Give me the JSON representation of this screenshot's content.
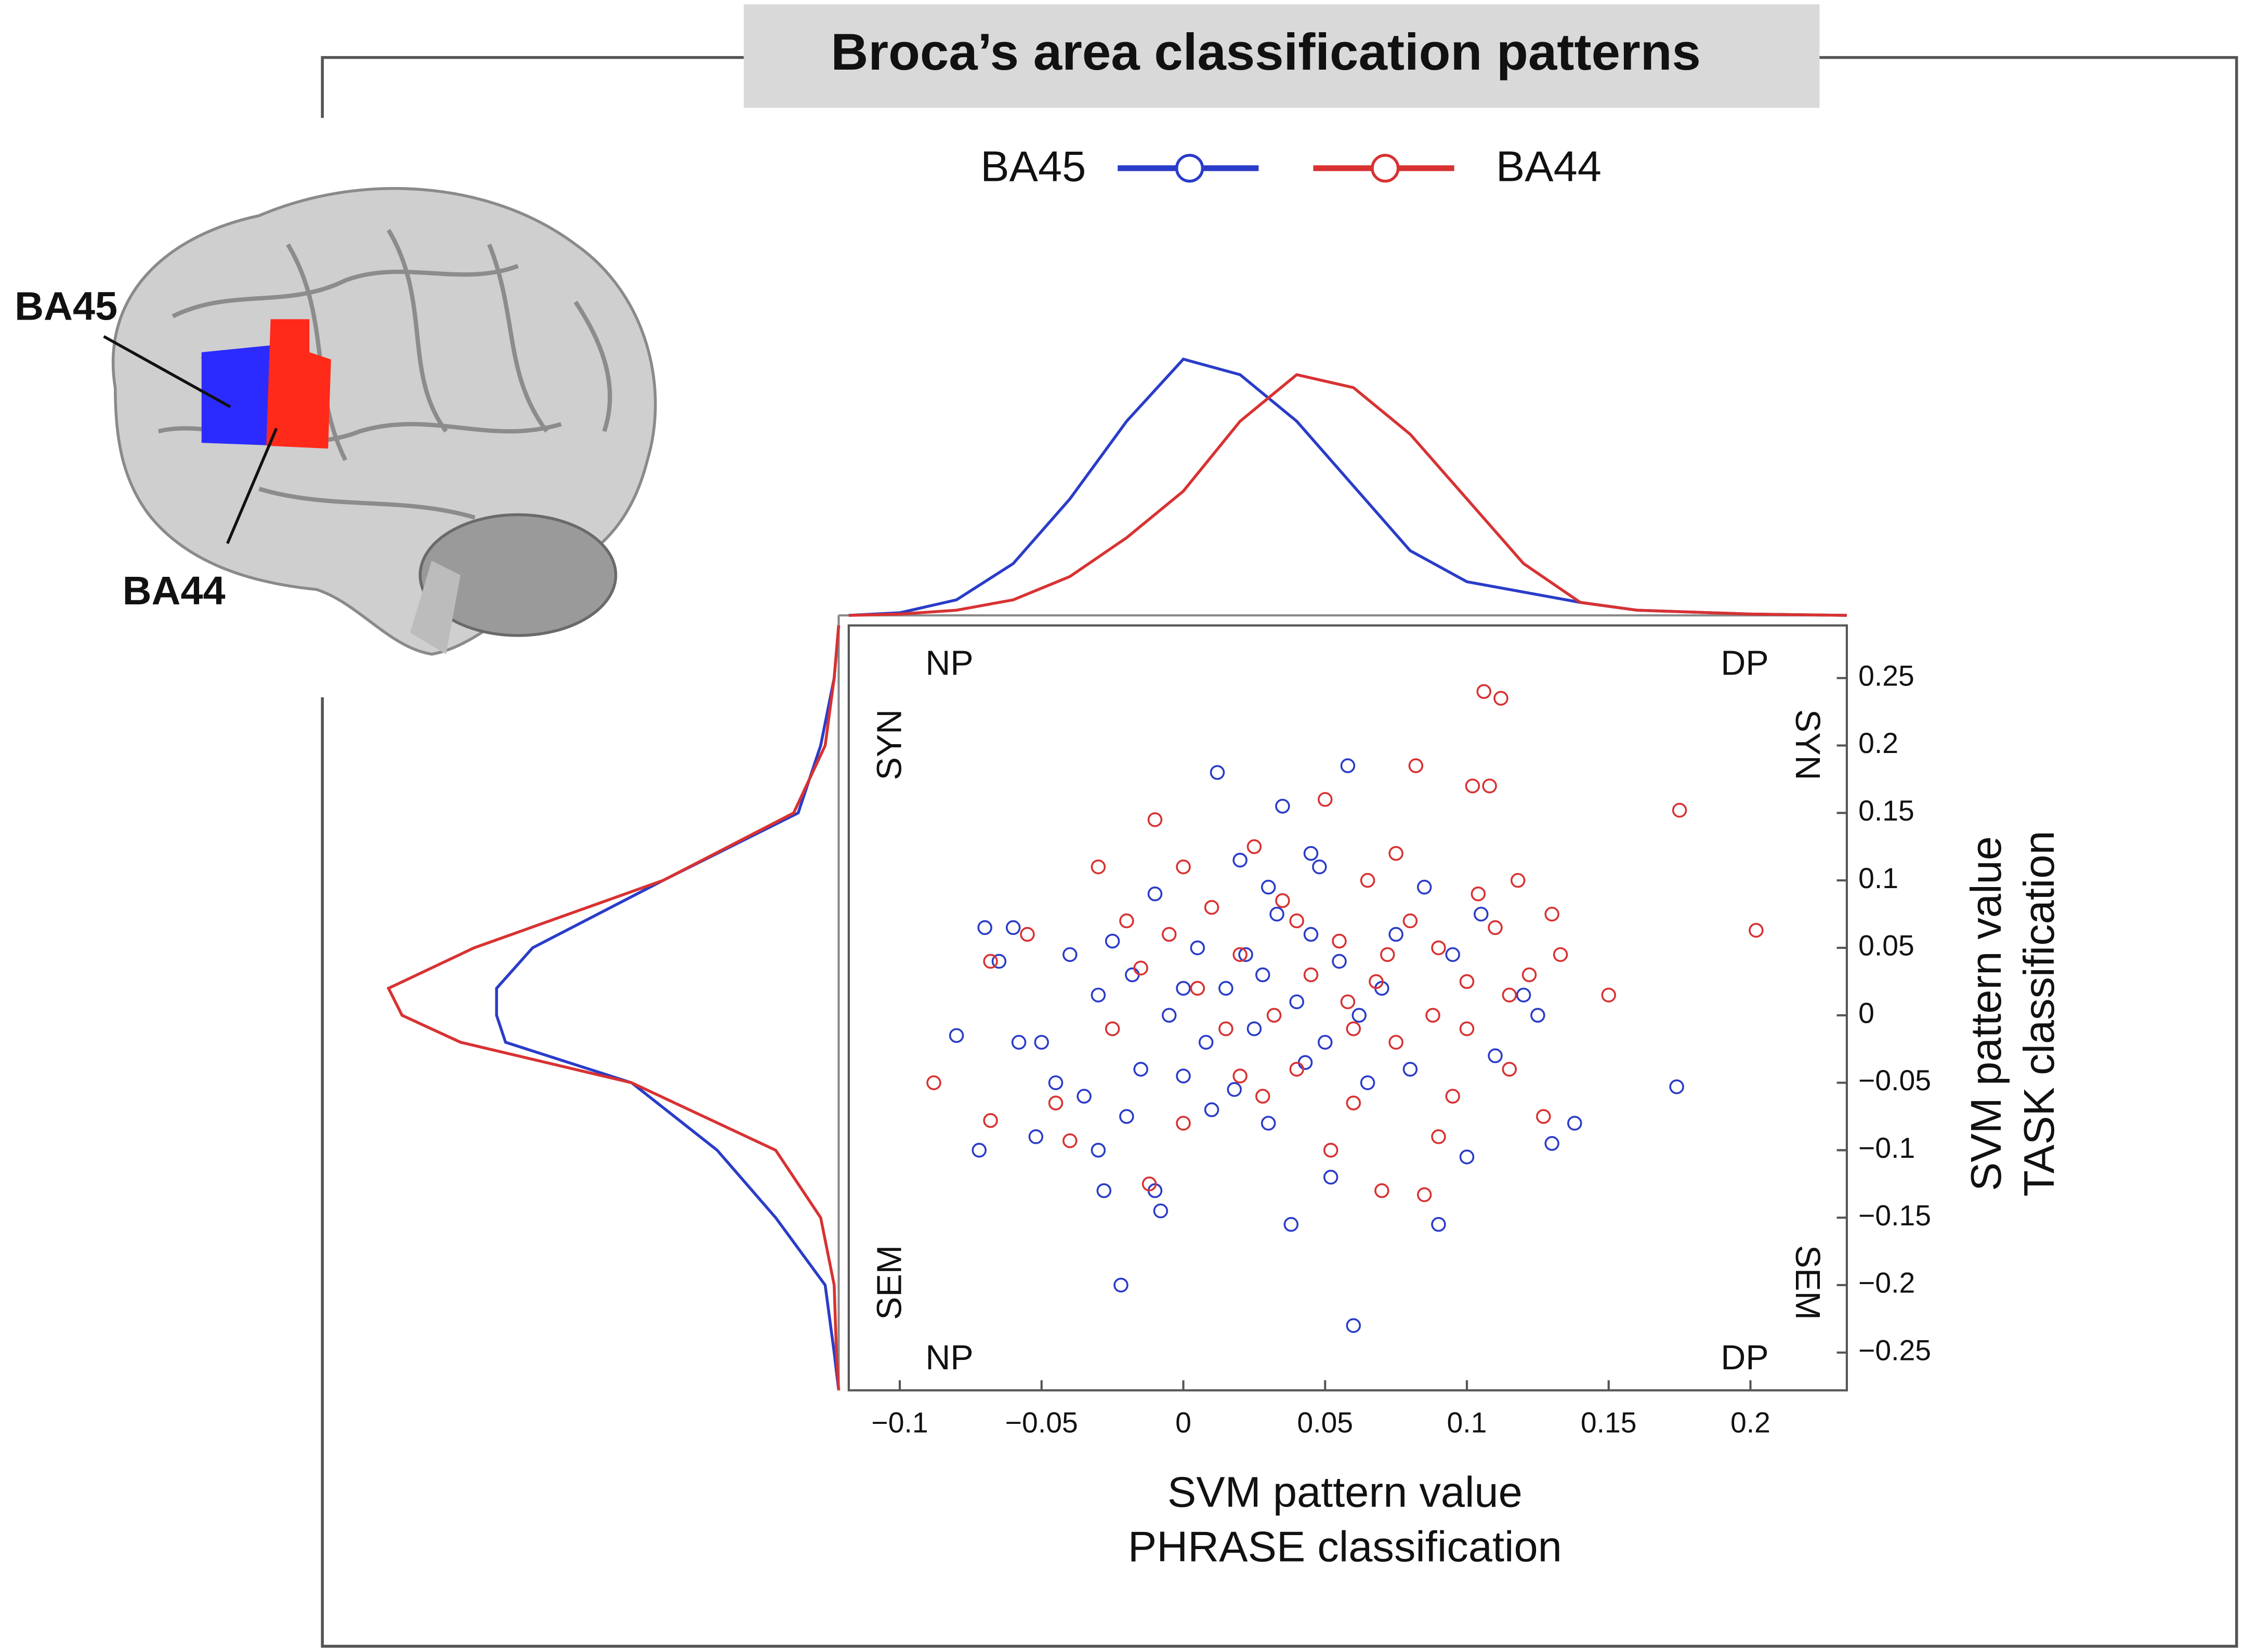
{
  "chart_data": {
    "type": "scatter",
    "title": "Broca’s area classification patterns",
    "xlabel": [
      "SVM pattern value",
      "PHRASE classification"
    ],
    "ylabel": [
      "SVM pattern value",
      "TASK classification"
    ],
    "annotations": [
      "NP",
      "DP",
      "NP",
      "DP",
      "SYN",
      "SYN",
      "SEM",
      "SEM"
    ],
    "brain_labels": [
      "BA45",
      "BA44"
    ],
    "xlim": [
      -0.118,
      0.234
    ],
    "ylim": [
      -0.278,
      0.289
    ],
    "xticks": [
      {
        "value": -0.1,
        "label": "−0.1"
      },
      {
        "value": -0.05,
        "label": "−0.05"
      },
      0,
      0.05,
      0.1,
      0.15,
      0.2
    ],
    "yticks": [
      0.25,
      0.2,
      0.15,
      0.1,
      0.05,
      0,
      {
        "value": -0.05,
        "label": "−0.05"
      },
      {
        "value": -0.1,
        "label": "−0.1"
      },
      {
        "value": -0.15,
        "label": "−0.15"
      },
      {
        "value": -0.2,
        "label": "−0.2"
      },
      {
        "value": -0.25,
        "label": "−0.25"
      }
    ],
    "legend": "top",
    "density_lim": [
      0,
      1
    ],
    "top_density_x": [
      -0.118,
      -0.1,
      -0.08,
      -0.06,
      -0.04,
      -0.02,
      0,
      0.02,
      0.04,
      0.06,
      0.08,
      0.1,
      0.12,
      0.14,
      0.16,
      0.2,
      0.234
    ],
    "side_density_y": [
      0.289,
      0.25,
      0.2,
      0.15,
      0.1,
      0.05,
      0.02,
      0,
      -0.02,
      -0.05,
      -0.1,
      -0.15,
      -0.2,
      -0.25,
      -0.278
    ],
    "series": [
      {
        "name": "BA45",
        "color": "#2a3cc8",
        "x": [
          -0.07,
          -0.08,
          -0.072,
          -0.06,
          -0.058,
          -0.052,
          -0.045,
          -0.04,
          -0.035,
          -0.03,
          -0.028,
          -0.025,
          -0.02,
          -0.018,
          -0.015,
          -0.01,
          -0.022,
          -0.01,
          -0.008,
          -0.005,
          0.0,
          0.005,
          0.008,
          0.012,
          0.015,
          0.018,
          0.02,
          0.022,
          0.025,
          0.028,
          0.03,
          0.033,
          0.035,
          0.038,
          0.04,
          0.043,
          0.045,
          0.048,
          0.05,
          0.052,
          0.055,
          0.058,
          0.06,
          0.062,
          0.065,
          0.07,
          0.075,
          0.08,
          0.085,
          0.09,
          0.095,
          0.1,
          0.105,
          0.11,
          0.12,
          0.125,
          0.13,
          0.138,
          0.174,
          -0.065,
          -0.05,
          -0.03,
          0.0,
          0.01,
          0.03,
          0.045
        ],
        "values": [
          0.065,
          -0.015,
          -0.1,
          0.065,
          -0.02,
          -0.09,
          -0.05,
          0.045,
          -0.06,
          0.015,
          -0.13,
          0.055,
          -0.075,
          0.03,
          -0.04,
          0.09,
          -0.2,
          -0.13,
          -0.145,
          0.0,
          -0.045,
          0.05,
          -0.02,
          0.18,
          0.02,
          -0.055,
          0.115,
          0.045,
          -0.01,
          0.03,
          -0.08,
          0.075,
          0.155,
          -0.155,
          0.01,
          -0.035,
          0.06,
          0.11,
          -0.02,
          -0.12,
          0.04,
          0.185,
          -0.23,
          0.0,
          -0.05,
          0.02,
          0.06,
          -0.04,
          0.095,
          -0.155,
          0.045,
          -0.105,
          0.075,
          -0.03,
          0.015,
          0.0,
          -0.095,
          -0.08,
          -0.053,
          0.04,
          -0.02,
          -0.1,
          0.02,
          -0.07,
          0.095,
          0.12
        ],
        "top_density": [
          0,
          0.01,
          0.06,
          0.2,
          0.45,
          0.75,
          0.99,
          0.93,
          0.75,
          0.5,
          0.25,
          0.13,
          0.09,
          0.05,
          0.02,
          0.005,
          0
        ],
        "side_density": [
          0,
          0.01,
          0.04,
          0.09,
          0.39,
          0.68,
          0.76,
          0.76,
          0.74,
          0.46,
          0.27,
          0.14,
          0.03,
          0.01,
          0
        ]
      },
      {
        "name": "BA44",
        "color": "#d83232",
        "x": [
          -0.088,
          -0.068,
          -0.068,
          -0.055,
          -0.045,
          -0.04,
          -0.03,
          -0.02,
          -0.015,
          -0.012,
          -0.01,
          -0.005,
          0.0,
          0.005,
          0.01,
          0.015,
          0.02,
          0.025,
          0.028,
          0.032,
          0.035,
          0.04,
          0.045,
          0.05,
          0.052,
          0.055,
          0.058,
          0.06,
          0.065,
          0.068,
          0.07,
          0.072,
          0.075,
          0.08,
          0.082,
          0.085,
          0.088,
          0.09,
          0.095,
          0.1,
          0.102,
          0.104,
          0.106,
          0.108,
          0.11,
          0.112,
          0.115,
          0.118,
          0.122,
          0.127,
          0.13,
          0.133,
          0.15,
          0.175,
          0.202,
          -0.025,
          0.0,
          0.02,
          0.04,
          0.06,
          0.075,
          0.09,
          0.1,
          0.115
        ],
        "values": [
          -0.05,
          -0.078,
          0.04,
          0.06,
          -0.065,
          -0.093,
          0.11,
          0.07,
          0.035,
          -0.125,
          0.145,
          0.06,
          -0.08,
          0.02,
          0.08,
          -0.01,
          0.045,
          0.125,
          -0.06,
          0.0,
          0.085,
          -0.04,
          0.03,
          0.16,
          -0.1,
          0.055,
          0.01,
          -0.065,
          0.1,
          0.025,
          -0.13,
          0.045,
          -0.02,
          0.07,
          0.185,
          -0.133,
          0.0,
          0.05,
          -0.06,
          0.025,
          0.17,
          0.09,
          0.24,
          0.17,
          0.065,
          0.235,
          -0.04,
          0.1,
          0.03,
          -0.075,
          0.075,
          0.045,
          0.015,
          0.152,
          0.063,
          -0.01,
          0.11,
          -0.045,
          0.07,
          -0.01,
          0.12,
          -0.09,
          -0.01,
          0.015
        ],
        "top_density": [
          0,
          0.005,
          0.02,
          0.06,
          0.15,
          0.3,
          0.48,
          0.75,
          0.93,
          0.88,
          0.7,
          0.45,
          0.2,
          0.05,
          0.02,
          0.005,
          0
        ],
        "side_density": [
          0,
          0.01,
          0.03,
          0.1,
          0.39,
          0.81,
          1.0,
          0.97,
          0.84,
          0.46,
          0.14,
          0.04,
          0.01,
          0.005,
          0
        ]
      }
    ]
  }
}
